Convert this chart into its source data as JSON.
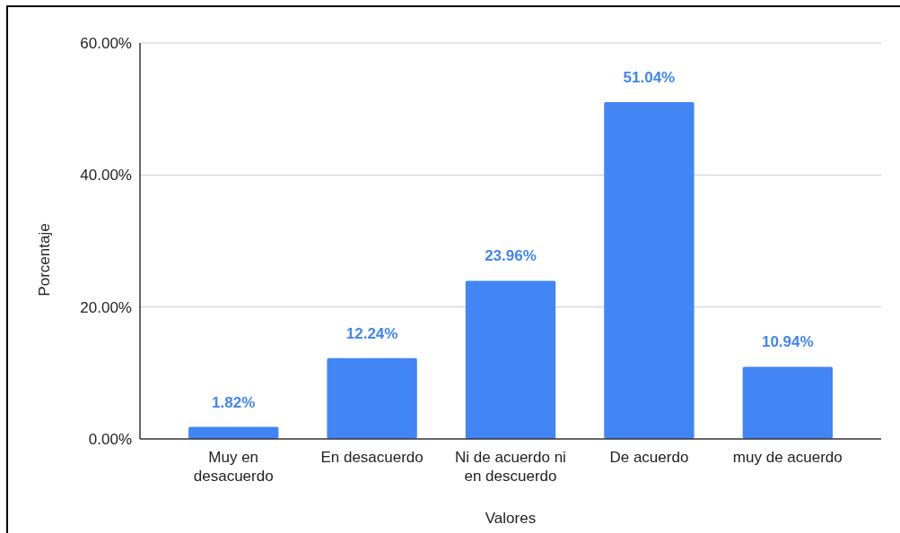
{
  "chart_data": {
    "type": "bar",
    "categories": [
      "Muy en desacuerdo",
      "En desacuerdo",
      "Ni de acuerdo ni en descuerdo",
      "De acuerdo",
      "muy de acuerdo"
    ],
    "values": [
      1.82,
      12.24,
      23.96,
      51.04,
      10.94
    ],
    "value_labels": [
      "1.82%",
      "12.24%",
      "23.96%",
      "51.04%",
      "10.94%"
    ],
    "color": "#4285f4",
    "xlabel": "Valores",
    "ylabel": "Porcentaje",
    "ylim": [
      0,
      60
    ],
    "yticks": [
      {
        "value": 0,
        "label": "0.00%"
      },
      {
        "value": 20,
        "label": "20.00%"
      },
      {
        "value": 40,
        "label": "40.00%"
      },
      {
        "value": 60,
        "label": "60.00%"
      }
    ],
    "grid": "y"
  }
}
